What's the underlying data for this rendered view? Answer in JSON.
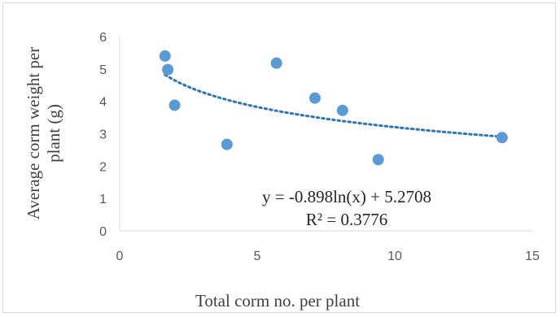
{
  "chart_data": {
    "type": "scatter",
    "xlabel": "Total corm no. per plant",
    "ylabel_lines": [
      "Average corm weight per",
      "plant  (g)"
    ],
    "xlim": [
      0,
      15
    ],
    "ylim": [
      0,
      6
    ],
    "x_ticks": [
      "0",
      "5",
      "10",
      "15"
    ],
    "y_ticks": [
      "0",
      "1",
      "2",
      "3",
      "4",
      "5",
      "6"
    ],
    "grid": false,
    "points": [
      {
        "x": 1.65,
        "y": 5.4
      },
      {
        "x": 1.75,
        "y": 4.98
      },
      {
        "x": 2.0,
        "y": 3.88
      },
      {
        "x": 3.9,
        "y": 2.67
      },
      {
        "x": 5.7,
        "y": 5.18
      },
      {
        "x": 7.1,
        "y": 4.1
      },
      {
        "x": 8.1,
        "y": 3.72
      },
      {
        "x": 9.4,
        "y": 2.2
      },
      {
        "x": 13.9,
        "y": 2.88
      }
    ],
    "trendline": {
      "type": "logarithmic",
      "a": -0.898,
      "b": 5.2708,
      "x_start": 1.65,
      "x_end": 13.9
    },
    "equation": "y = -0.898ln(x) + 5.2708",
    "r_squared": "R² = 0.3776",
    "marker_color": "#5b9bd5",
    "trend_color": "#2e75b6"
  }
}
